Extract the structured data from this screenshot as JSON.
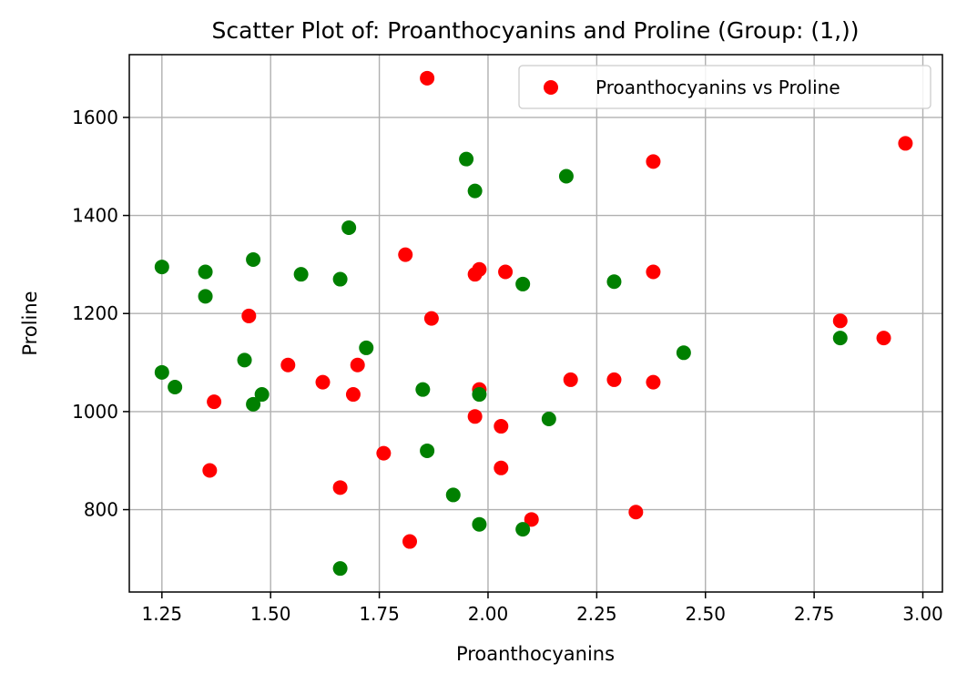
{
  "chart_data": {
    "type": "scatter",
    "title": "Scatter Plot of: Proanthocyanins and Proline (Group: (1,))",
    "xlabel": "Proanthocyanins",
    "ylabel": "Proline",
    "xlim": [
      1.175,
      3.045
    ],
    "ylim": [
      632,
      1728
    ],
    "xticks": [
      1.25,
      1.5,
      1.75,
      2.0,
      2.25,
      2.5,
      2.75,
      3.0
    ],
    "xtick_labels": [
      "1.25",
      "1.50",
      "1.75",
      "2.00",
      "2.25",
      "2.50",
      "2.75",
      "3.00"
    ],
    "yticks": [
      800,
      1000,
      1200,
      1400,
      1600
    ],
    "ytick_labels": [
      "800",
      "1000",
      "1200",
      "1400",
      "1600"
    ],
    "grid": true,
    "legend_position": "upper right",
    "legend_label": "Proanthocyanins vs Proline",
    "series": [
      {
        "color": "#ff0000",
        "points": [
          [
            1.86,
            1680
          ],
          [
            2.96,
            1547
          ],
          [
            2.38,
            1510
          ],
          [
            1.81,
            1320
          ],
          [
            1.98,
            1290
          ],
          [
            2.04,
            1285
          ],
          [
            1.97,
            1280
          ],
          [
            2.38,
            1285
          ],
          [
            1.45,
            1195
          ],
          [
            1.87,
            1190
          ],
          [
            2.81,
            1185
          ],
          [
            2.91,
            1150
          ],
          [
            1.54,
            1095
          ],
          [
            1.7,
            1095
          ],
          [
            1.62,
            1060
          ],
          [
            1.69,
            1035
          ],
          [
            1.37,
            1020
          ],
          [
            2.19,
            1065
          ],
          [
            2.29,
            1065
          ],
          [
            2.38,
            1060
          ],
          [
            1.98,
            1045
          ],
          [
            1.97,
            990
          ],
          [
            2.03,
            970
          ],
          [
            1.76,
            915
          ],
          [
            2.03,
            885
          ],
          [
            1.36,
            880
          ],
          [
            1.66,
            845
          ],
          [
            2.34,
            795
          ],
          [
            2.1,
            780
          ],
          [
            1.82,
            735
          ]
        ]
      },
      {
        "color": "#008000",
        "points": [
          [
            1.95,
            1515
          ],
          [
            2.18,
            1480
          ],
          [
            1.97,
            1450
          ],
          [
            1.68,
            1375
          ],
          [
            1.46,
            1310
          ],
          [
            1.25,
            1295
          ],
          [
            1.35,
            1285
          ],
          [
            1.57,
            1280
          ],
          [
            1.66,
            1270
          ],
          [
            2.29,
            1265
          ],
          [
            2.08,
            1260
          ],
          [
            1.35,
            1235
          ],
          [
            1.72,
            1130
          ],
          [
            2.45,
            1120
          ],
          [
            1.44,
            1105
          ],
          [
            2.81,
            1150
          ],
          [
            1.25,
            1080
          ],
          [
            1.28,
            1050
          ],
          [
            1.48,
            1035
          ],
          [
            1.46,
            1015
          ],
          [
            1.85,
            1045
          ],
          [
            1.98,
            1035
          ],
          [
            2.14,
            985
          ],
          [
            1.86,
            920
          ],
          [
            1.92,
            830
          ],
          [
            1.98,
            770
          ],
          [
            2.08,
            760
          ],
          [
            1.66,
            680
          ]
        ]
      }
    ]
  }
}
